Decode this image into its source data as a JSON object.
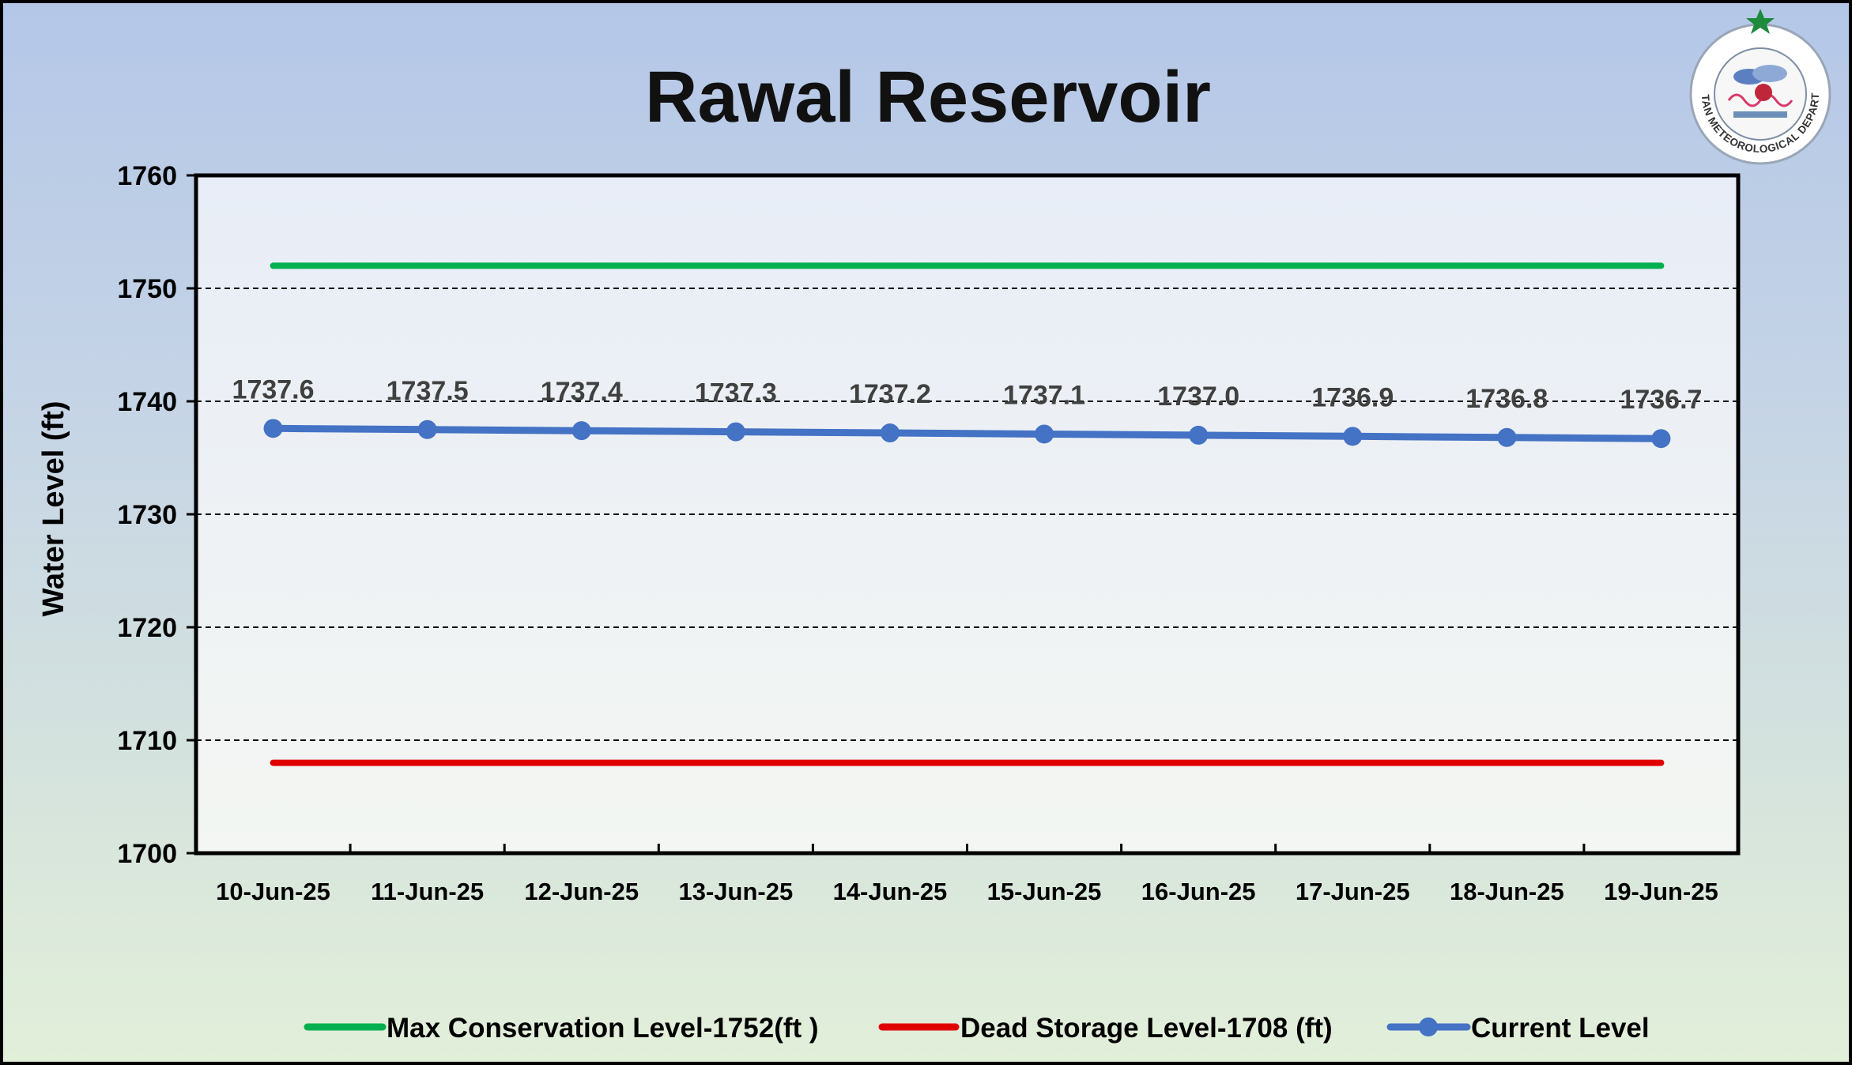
{
  "colors": {
    "max_line": "#00b050",
    "dead_line": "#e00000",
    "current_line": "#4472c4",
    "grid": "#000000",
    "text": "#000000",
    "data_label": "#404040"
  },
  "logo": {
    "icon": "pakistan-meteorological-department-logo",
    "text": "PAKISTAN METEOROLOGICAL DEPARTMENT"
  },
  "chart_data": {
    "type": "line",
    "title": "Rawal Reservoir",
    "ylabel": "Water Level (ft)",
    "xlabel": "",
    "ylim": [
      1700,
      1760
    ],
    "yticks": [
      1700,
      1710,
      1720,
      1730,
      1740,
      1750,
      1760
    ],
    "grid": "horizontal dashed",
    "legend_position": "bottom",
    "categories": [
      "10-Jun-25",
      "11-Jun-25",
      "12-Jun-25",
      "13-Jun-25",
      "14-Jun-25",
      "15-Jun-25",
      "16-Jun-25",
      "17-Jun-25",
      "18-Jun-25",
      "19-Jun-25"
    ],
    "series": [
      {
        "name": "Max Conservation Level-1752(ft )",
        "values": [
          1752,
          1752,
          1752,
          1752,
          1752,
          1752,
          1752,
          1752,
          1752,
          1752
        ],
        "markers": false
      },
      {
        "name": "Dead Storage Level-1708 (ft)",
        "values": [
          1708,
          1708,
          1708,
          1708,
          1708,
          1708,
          1708,
          1708,
          1708,
          1708
        ],
        "markers": false
      },
      {
        "name": "Current Level",
        "values": [
          1737.6,
          1737.5,
          1737.4,
          1737.3,
          1737.2,
          1737.1,
          1737.0,
          1736.9,
          1736.8,
          1736.7
        ],
        "markers": true
      }
    ],
    "data_labels": [
      "1737.6",
      "1737.5",
      "1737.4",
      "1737.3",
      "1737.2",
      "1737.1",
      "1737.0",
      "1736.9",
      "1736.8",
      "1736.7"
    ]
  }
}
